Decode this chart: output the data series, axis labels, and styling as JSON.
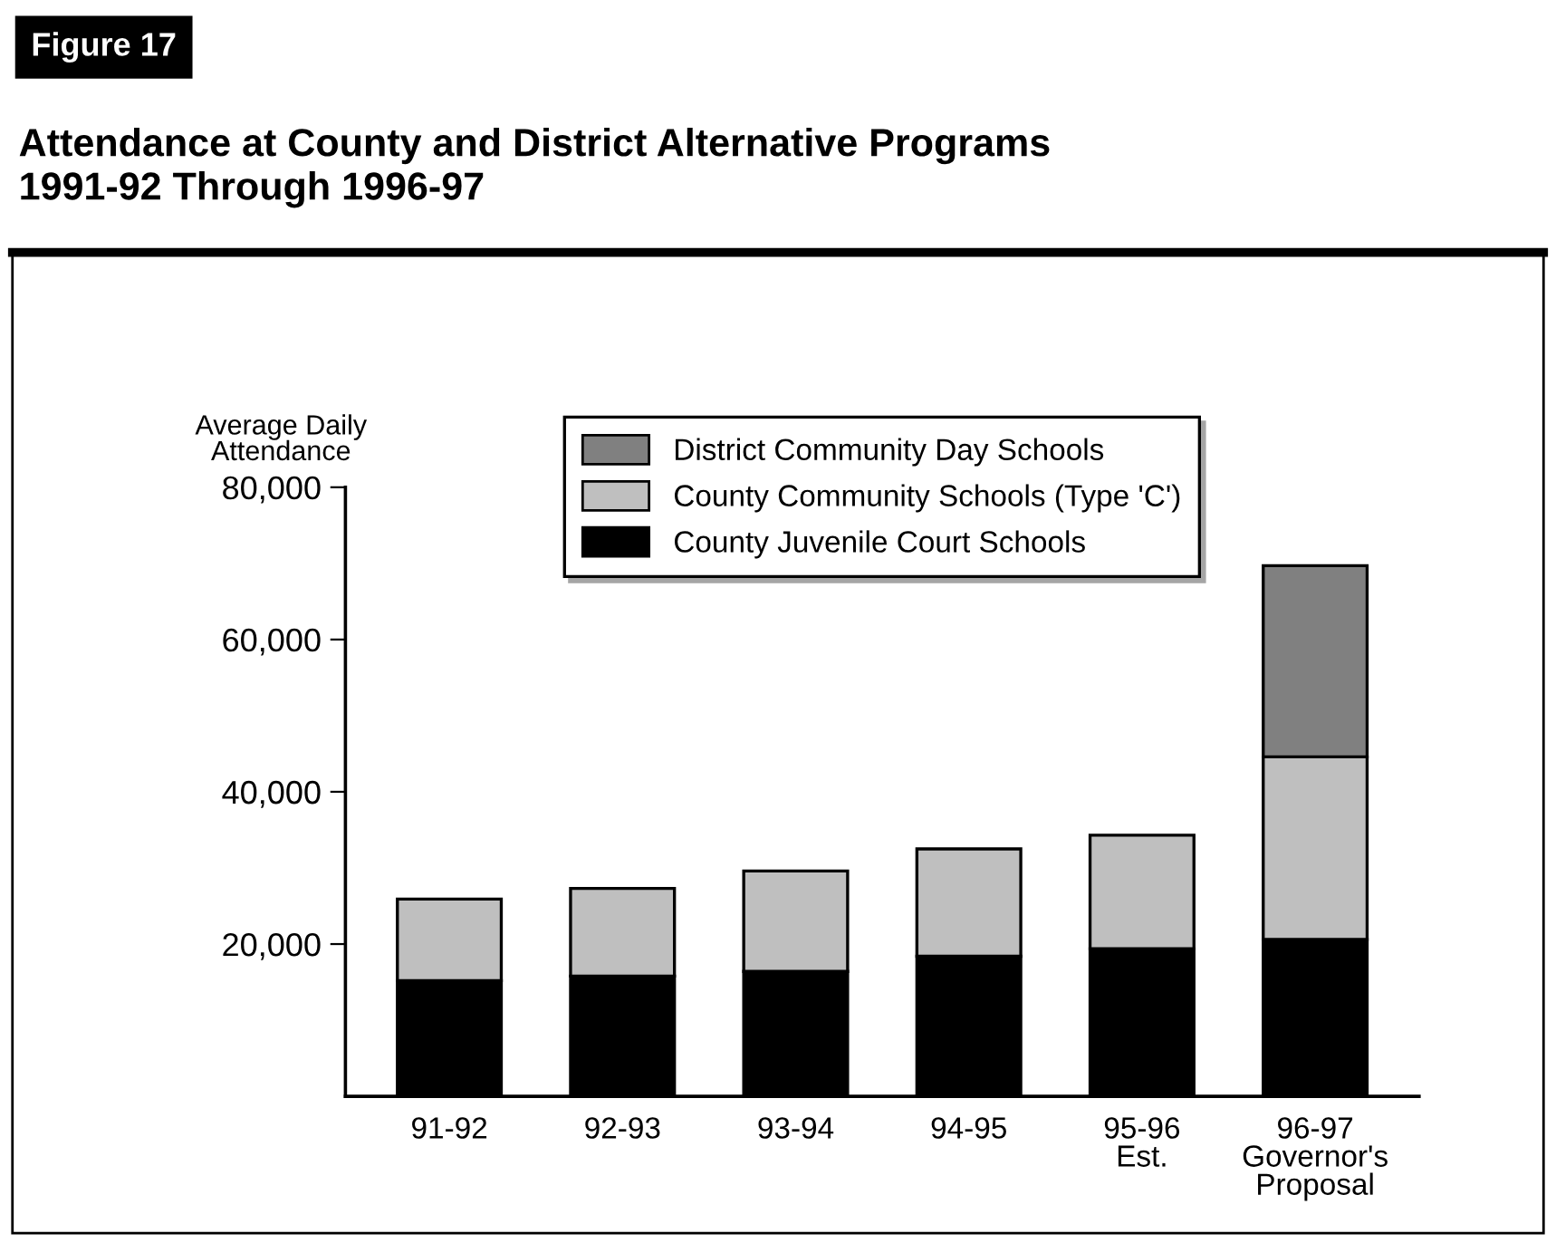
{
  "chart_data": {
    "type": "bar",
    "title": "Attendance at County and District Alternative Programs\n1991-92 Through 1996-97",
    "annotations": [
      "Figure 17"
    ],
    "ylabel": "Average Daily\nAttendance",
    "categories": [
      "91-92",
      "92-93",
      "93-94",
      "94-95",
      "95-96\nEst.",
      "96-97\nGovernor's\nProposal"
    ],
    "stacked": true,
    "series": [
      {
        "name": "County Juvenile Court Schools",
        "color": "#000000",
        "values": [
          15200,
          15800,
          16400,
          18400,
          19400,
          20600
        ]
      },
      {
        "name": "County Community Schools (Type 'C')",
        "color": "#bfbfbf",
        "values": [
          10700,
          11500,
          13200,
          14100,
          14900,
          24000
        ]
      },
      {
        "name": "District Community Day Schools",
        "color": "#808080",
        "values": [
          null,
          null,
          null,
          null,
          null,
          25100
        ]
      }
    ],
    "ylim": [
      0,
      80000
    ],
    "yticks": [
      {
        "value": 20000,
        "label": "20,000"
      },
      {
        "value": 40000,
        "label": "40,000"
      },
      {
        "value": 60000,
        "label": "60,000"
      },
      {
        "value": 80000,
        "label": "80,000"
      }
    ],
    "grid": false,
    "legend": "top"
  }
}
